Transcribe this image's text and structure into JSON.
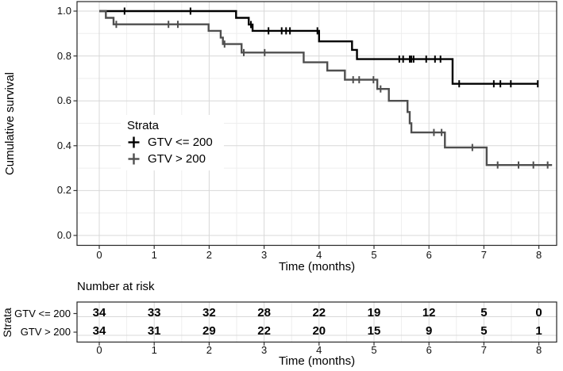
{
  "colors": {
    "background": "#ffffff",
    "grid_major": "#d8d8d8",
    "grid_minor": "#eeeeee",
    "panel_border": "#262626",
    "tick_mark": "#333333",
    "text": "#000000"
  },
  "chart_data": {
    "type": "line",
    "subtype": "kaplan-meier-step-curves",
    "xlabel": "Time (months)",
    "ylabel": "Cumulative survival",
    "xlim": [
      0,
      8.3
    ],
    "ylim": [
      0.0,
      1.0
    ],
    "x_ticks": [
      0,
      1,
      2,
      3,
      4,
      5,
      6,
      7,
      8
    ],
    "y_ticks": [
      "0.0",
      "0.2",
      "0.4",
      "0.6",
      "0.8",
      "1.0"
    ],
    "grid": "major-and-minor",
    "legend": {
      "title": "Strata",
      "position": "inside-left",
      "items": [
        {
          "label": "GTV <= 200",
          "color": "#000000"
        },
        {
          "label": "GTV > 200",
          "color": "#4f4f4f"
        }
      ]
    },
    "series": [
      {
        "name": "GTV <= 200",
        "color": "#000000",
        "start": [
          0,
          1.0
        ],
        "steps": [
          [
            2.49,
            0.97
          ],
          [
            2.72,
            0.94
          ],
          [
            2.79,
            0.912
          ],
          [
            4.0,
            0.865
          ],
          [
            4.6,
            0.827
          ],
          [
            4.69,
            0.786
          ],
          [
            6.43,
            0.676
          ]
        ],
        "end_t": 7.99,
        "censors": [
          [
            0.46,
            1.0
          ],
          [
            1.66,
            1.0
          ],
          [
            2.76,
            0.94
          ],
          [
            3.08,
            0.912
          ],
          [
            3.32,
            0.912
          ],
          [
            3.4,
            0.912
          ],
          [
            3.47,
            0.912
          ],
          [
            3.97,
            0.912
          ],
          [
            5.46,
            0.786
          ],
          [
            5.53,
            0.786
          ],
          [
            5.65,
            0.786
          ],
          [
            5.68,
            0.786
          ],
          [
            5.72,
            0.786
          ],
          [
            5.95,
            0.786
          ],
          [
            6.11,
            0.786
          ],
          [
            6.21,
            0.786
          ],
          [
            6.55,
            0.676
          ],
          [
            7.18,
            0.676
          ],
          [
            7.3,
            0.676
          ],
          [
            7.49,
            0.676
          ],
          [
            7.98,
            0.676
          ]
        ]
      },
      {
        "name": "GTV > 200",
        "color": "#4f4f4f",
        "start": [
          0,
          1.0
        ],
        "steps": [
          [
            0.12,
            0.97
          ],
          [
            0.26,
            0.941
          ],
          [
            1.99,
            0.912
          ],
          [
            2.21,
            0.882
          ],
          [
            2.25,
            0.853
          ],
          [
            2.59,
            0.815
          ],
          [
            3.72,
            0.772
          ],
          [
            4.15,
            0.735
          ],
          [
            4.47,
            0.694
          ],
          [
            5.06,
            0.653
          ],
          [
            5.27,
            0.6
          ],
          [
            5.61,
            0.55
          ],
          [
            5.65,
            0.5
          ],
          [
            5.68,
            0.459
          ],
          [
            6.29,
            0.392
          ],
          [
            7.05,
            0.314
          ]
        ],
        "end_t": 8.24,
        "censors": [
          [
            0.31,
            0.941
          ],
          [
            1.26,
            0.941
          ],
          [
            1.43,
            0.941
          ],
          [
            2.28,
            0.853
          ],
          [
            2.63,
            0.815
          ],
          [
            3.01,
            0.815
          ],
          [
            4.62,
            0.694
          ],
          [
            4.73,
            0.694
          ],
          [
            4.99,
            0.694
          ],
          [
            5.12,
            0.653
          ],
          [
            6.09,
            0.459
          ],
          [
            6.23,
            0.459
          ],
          [
            6.79,
            0.392
          ],
          [
            7.25,
            0.314
          ],
          [
            7.63,
            0.314
          ],
          [
            7.9,
            0.314
          ],
          [
            8.16,
            0.314
          ]
        ]
      }
    ],
    "risk_table": {
      "title": "Number at risk",
      "axis_label": "Strata",
      "xlabel": "Time (months)",
      "time_points": [
        0,
        1,
        2,
        3,
        4,
        5,
        6,
        7,
        8
      ],
      "rows": [
        {
          "label": "GTV <= 200",
          "counts": [
            34,
            33,
            32,
            28,
            22,
            19,
            12,
            5,
            0
          ]
        },
        {
          "label": "GTV > 200",
          "counts": [
            34,
            31,
            29,
            22,
            20,
            15,
            9,
            5,
            1
          ]
        }
      ]
    }
  }
}
